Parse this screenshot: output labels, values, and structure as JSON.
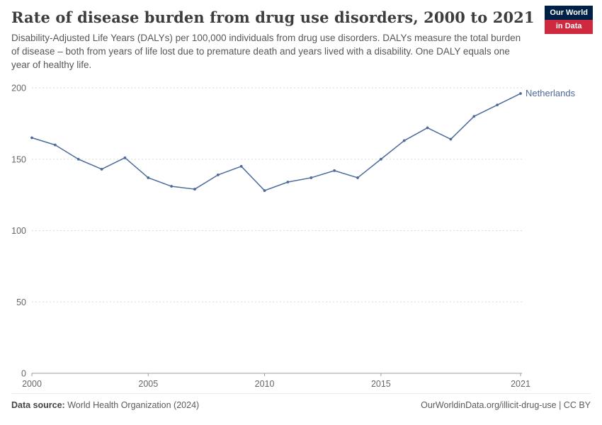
{
  "header": {
    "title": "Rate of disease burden from drug use disorders, 2000 to 2021",
    "subtitle": "Disability-Adjusted Life Years (DALYs) per 100,000 individuals from drug use disorders. DALYs measure the total burden of disease – both from years of life lost due to premature death and years lived with a disability. One DALY equals one year of healthy life.",
    "logo": {
      "line1": "Our World",
      "line2": "in Data"
    }
  },
  "footer": {
    "datasource_label": "Data source:",
    "datasource_value": " World Health Organization (2024)",
    "attribution": "OurWorldinData.org/illicit-drug-use | CC BY"
  },
  "colors": {
    "line": "#4c6a9c",
    "grid": "#dadada",
    "axis": "#9e9e9e",
    "tick_text": "#666666",
    "logo_navy": "#002147",
    "logo_red": "#cf2940"
  },
  "chart_data": {
    "type": "line",
    "title": "Rate of disease burden from drug use disorders, 2000 to 2021",
    "ylabel": "DALYs per 100,000 individuals",
    "x": [
      2000,
      2001,
      2002,
      2003,
      2004,
      2005,
      2006,
      2007,
      2008,
      2009,
      2010,
      2011,
      2012,
      2013,
      2014,
      2015,
      2016,
      2017,
      2018,
      2019,
      2020,
      2021
    ],
    "series": [
      {
        "name": "Netherlands",
        "color": "#4c6a9c",
        "values": [
          165,
          160,
          150,
          143,
          151,
          137,
          131,
          129,
          139,
          145,
          128,
          134,
          137,
          142,
          137,
          150,
          163,
          172,
          164,
          180,
          188,
          196
        ]
      }
    ],
    "ylim": [
      0,
      200
    ],
    "yticks": [
      0,
      50,
      100,
      150,
      200
    ],
    "xticks": [
      2000,
      2005,
      2010,
      2015,
      2021
    ],
    "grid": "horizontal-dashed",
    "legend": "line-end-label"
  }
}
